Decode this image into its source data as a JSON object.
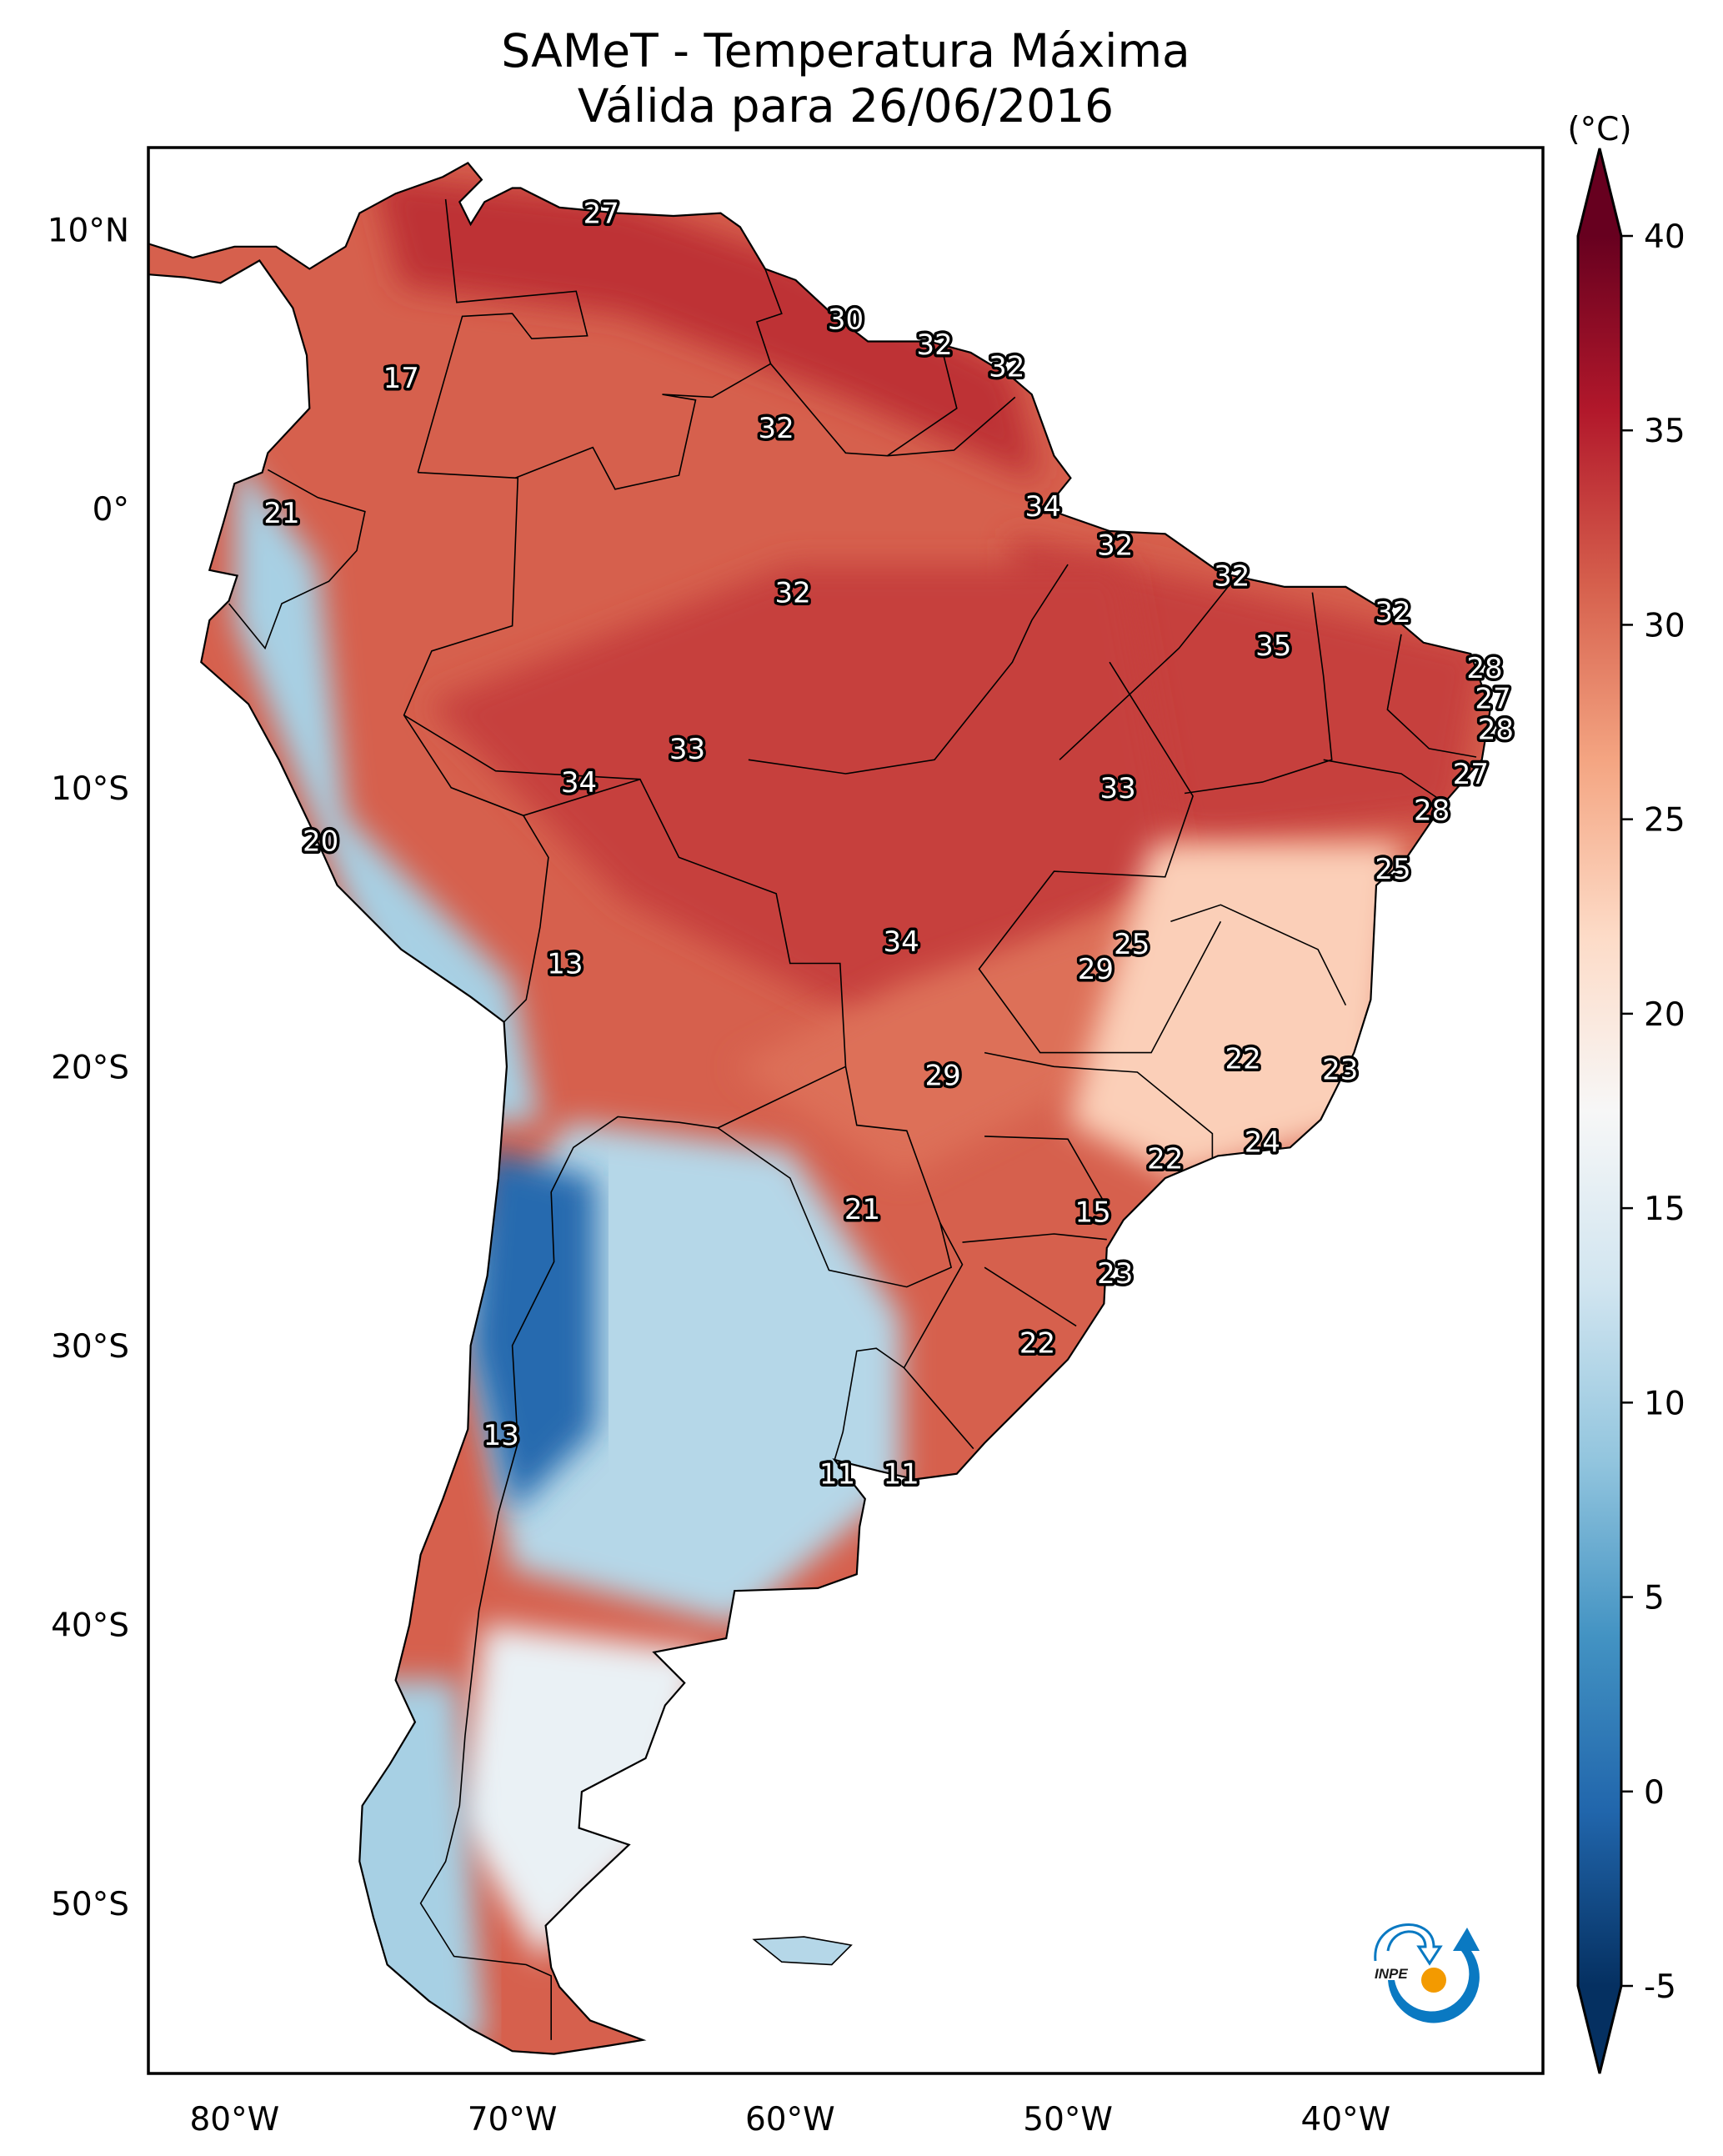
{
  "title": {
    "line1": "SAMeT - Temperatura Máxima",
    "line2": "Válida para 26/06/2016"
  },
  "chart_data": {
    "type": "heatmap",
    "title": "SAMeT - Temperatura Máxima",
    "subtitle": "Válida para 26/06/2016",
    "region": "South America",
    "projection": "PlateCarree",
    "xlim": [
      -83.1,
      -32.9
    ],
    "ylim": [
      -56.1,
      12.95
    ],
    "x_ticks": [
      {
        "value": -80,
        "label": "80°W"
      },
      {
        "value": -70,
        "label": "70°W"
      },
      {
        "value": -60,
        "label": "60°W"
      },
      {
        "value": -50,
        "label": "50°W"
      },
      {
        "value": -40,
        "label": "40°W"
      }
    ],
    "y_ticks": [
      {
        "value": 10,
        "label": "10°N"
      },
      {
        "value": 0,
        "label": "0°"
      },
      {
        "value": -10,
        "label": "10°S"
      },
      {
        "value": -20,
        "label": "20°S"
      },
      {
        "value": -30,
        "label": "30°S"
      },
      {
        "value": -40,
        "label": "40°S"
      },
      {
        "value": -50,
        "label": "50°S"
      }
    ],
    "colorbar": {
      "label": "(°C)",
      "colormap": "RdBu_r",
      "vmin": -5,
      "vmax": 40,
      "extend": "both",
      "ticks": [
        -5,
        0,
        5,
        10,
        15,
        20,
        25,
        30,
        35,
        40
      ],
      "tick_labels": [
        "-5",
        "0",
        "5",
        "10",
        "15",
        "20",
        "25",
        "30",
        "35",
        "40"
      ],
      "colors": [
        "#053061",
        "#2166ac",
        "#4393c3",
        "#92c5de",
        "#d1e5f0",
        "#f7f7f7",
        "#fddbc7",
        "#f4a582",
        "#d6604d",
        "#b2182b",
        "#67001f"
      ]
    },
    "value_labels": [
      {
        "value": 27,
        "lon": -66.8,
        "lat": 10.6
      },
      {
        "value": 17,
        "lon": -74.0,
        "lat": 4.7
      },
      {
        "value": 30,
        "lon": -58.0,
        "lat": 6.8
      },
      {
        "value": 32,
        "lon": -54.8,
        "lat": 5.9
      },
      {
        "value": 32,
        "lon": -52.2,
        "lat": 5.1
      },
      {
        "value": 32,
        "lon": -60.5,
        "lat": 2.9
      },
      {
        "value": 21,
        "lon": -78.3,
        "lat": -0.15
      },
      {
        "value": 34,
        "lon": -50.9,
        "lat": 0.1
      },
      {
        "value": 32,
        "lon": -48.3,
        "lat": -1.3
      },
      {
        "value": 32,
        "lon": -59.9,
        "lat": -3.0
      },
      {
        "value": 32,
        "lon": -44.1,
        "lat": -2.4
      },
      {
        "value": 32,
        "lon": -38.3,
        "lat": -3.7
      },
      {
        "value": 35,
        "lon": -42.6,
        "lat": -4.9
      },
      {
        "value": 28,
        "lon": -35.0,
        "lat": -5.7
      },
      {
        "value": 27,
        "lon": -34.7,
        "lat": -6.8
      },
      {
        "value": 28,
        "lon": -34.6,
        "lat": -7.9
      },
      {
        "value": 33,
        "lon": -63.7,
        "lat": -8.6
      },
      {
        "value": 34,
        "lon": -67.6,
        "lat": -9.8
      },
      {
        "value": 33,
        "lon": -48.2,
        "lat": -10.0
      },
      {
        "value": 27,
        "lon": -35.5,
        "lat": -9.5
      },
      {
        "value": 28,
        "lon": -36.9,
        "lat": -10.8
      },
      {
        "value": 20,
        "lon": -76.9,
        "lat": -11.9
      },
      {
        "value": 25,
        "lon": -38.3,
        "lat": -12.9
      },
      {
        "value": 34,
        "lon": -56.0,
        "lat": -15.5
      },
      {
        "value": 25,
        "lon": -47.7,
        "lat": -15.6
      },
      {
        "value": 29,
        "lon": -49.0,
        "lat": -16.5
      },
      {
        "value": 13,
        "lon": -68.1,
        "lat": -16.3
      },
      {
        "value": 29,
        "lon": -54.5,
        "lat": -20.3
      },
      {
        "value": 22,
        "lon": -43.7,
        "lat": -19.7
      },
      {
        "value": 23,
        "lon": -40.2,
        "lat": -20.1
      },
      {
        "value": 24,
        "lon": -43.0,
        "lat": -22.7
      },
      {
        "value": 22,
        "lon": -46.5,
        "lat": -23.3
      },
      {
        "value": 21,
        "lon": -57.4,
        "lat": -25.1
      },
      {
        "value": 15,
        "lon": -49.1,
        "lat": -25.2
      },
      {
        "value": 23,
        "lon": -48.3,
        "lat": -27.4
      },
      {
        "value": 22,
        "lon": -51.1,
        "lat": -29.9
      },
      {
        "value": 13,
        "lon": -70.4,
        "lat": -33.2
      },
      {
        "value": 11,
        "lon": -58.3,
        "lat": -34.6
      },
      {
        "value": 11,
        "lon": -56.0,
        "lat": -34.6
      }
    ],
    "field_regions": [
      {
        "name": "north-coast-hot",
        "value": 34
      },
      {
        "name": "amazon-hot",
        "value": 33
      },
      {
        "name": "northeast-brazil",
        "value": 33
      },
      {
        "name": "central-brazil",
        "value": 30
      },
      {
        "name": "southeast-brazil",
        "value": 23
      },
      {
        "name": "andes-cold",
        "value": 10
      },
      {
        "name": "argentina-cool",
        "value": 11
      },
      {
        "name": "andes-very-cold",
        "value": 0
      },
      {
        "name": "patagonia-mild",
        "value": 16
      }
    ]
  },
  "logo": {
    "text": "INPE",
    "colors": {
      "blue": "#0a79c2",
      "orange": "#f39a00"
    }
  }
}
